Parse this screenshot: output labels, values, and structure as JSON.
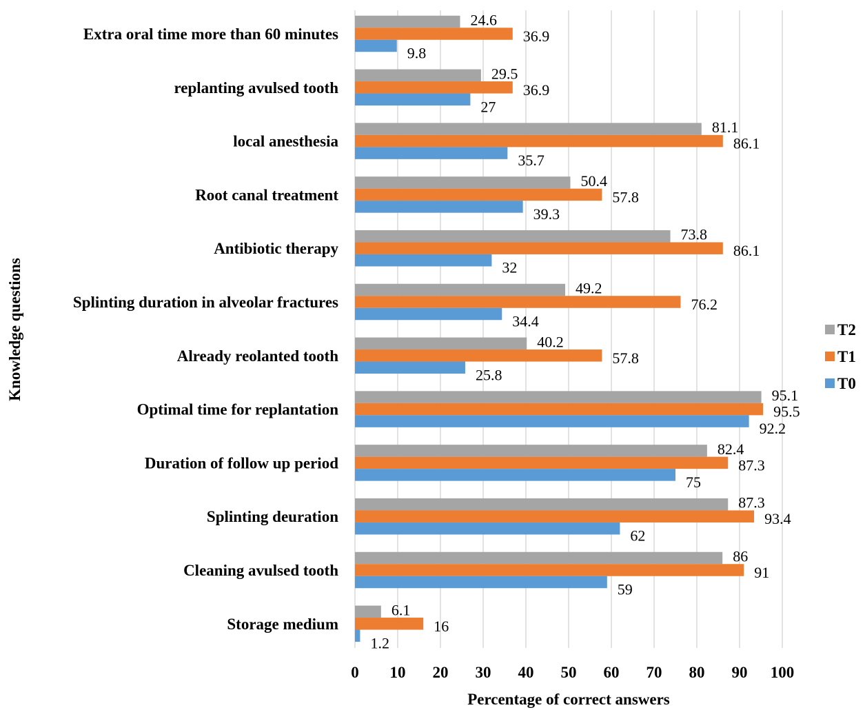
{
  "chart_data": {
    "type": "bar",
    "orientation": "horizontal",
    "xlabel": "Percentage of correct answers",
    "ylabel": "Knowledge questions",
    "xlim": [
      0,
      100
    ],
    "xticks": [
      0,
      10,
      20,
      30,
      40,
      50,
      60,
      70,
      80,
      90,
      100
    ],
    "grid": true,
    "legend_position": "right",
    "categories": [
      "Extra oral time more than 60 minutes",
      "replanting avulsed tooth",
      "local anesthesia",
      "Root canal treatment",
      "Antibiotic therapy",
      "Splinting duration in alveolar fractures",
      "Already reolanted tooth",
      "Optimal time for replantation",
      "Duration of follow up period",
      "Splinting deuration",
      "Cleaning avulsed tooth",
      "Storage medium"
    ],
    "series": [
      {
        "name": "T2",
        "color": "#a5a5a5",
        "values": [
          24.6,
          29.5,
          81.1,
          50.4,
          73.8,
          49.2,
          40.2,
          95.1,
          82.4,
          87.3,
          86,
          6.1
        ]
      },
      {
        "name": "T1",
        "color": "#ed7d31",
        "values": [
          36.9,
          36.9,
          86.1,
          57.8,
          86.1,
          76.2,
          57.8,
          95.5,
          87.3,
          93.4,
          91,
          16
        ]
      },
      {
        "name": "T0",
        "color": "#5b9bd5",
        "values": [
          9.8,
          27,
          35.7,
          39.3,
          32,
          34.4,
          25.8,
          92.2,
          75,
          62,
          59,
          1.2
        ]
      }
    ]
  }
}
